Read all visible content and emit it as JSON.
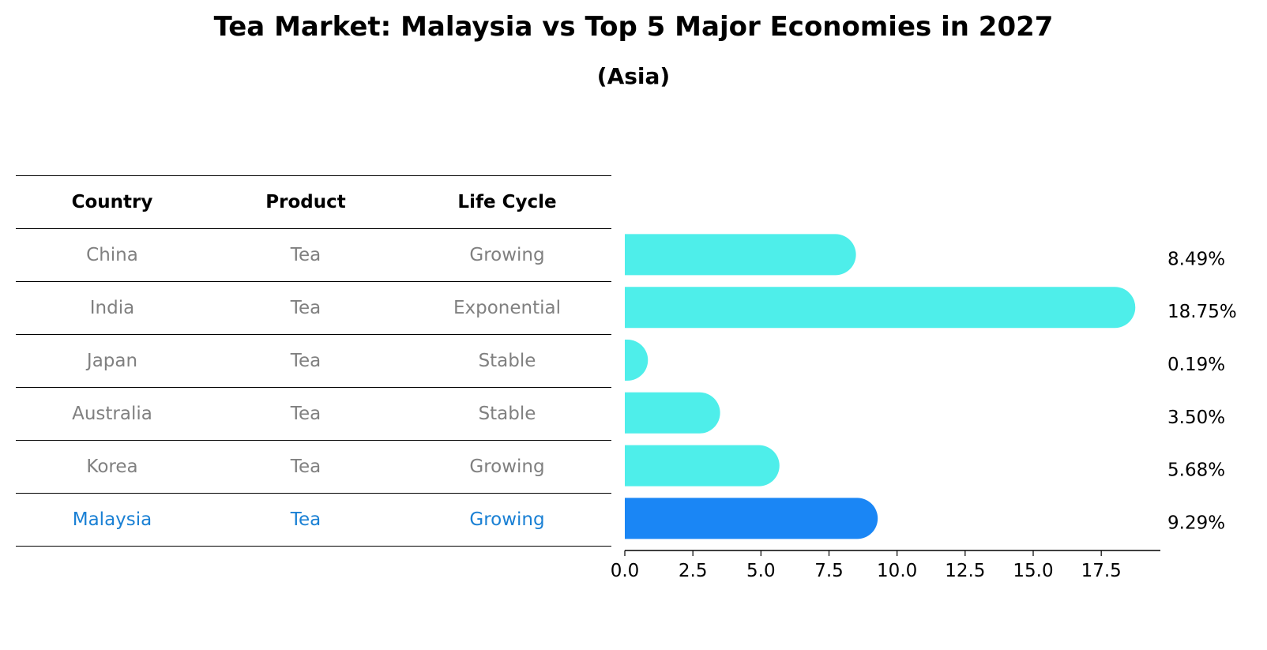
{
  "title": "Tea Market: Malaysia vs Top 5 Major Economies in 2027",
  "subtitle": "(Asia)",
  "table": {
    "headers": [
      "Country",
      "Product",
      "Life Cycle"
    ],
    "rows": [
      {
        "country": "China",
        "product": "Tea",
        "life_cycle": "Growing"
      },
      {
        "country": "India",
        "product": "Tea",
        "life_cycle": "Exponential"
      },
      {
        "country": "Japan",
        "product": "Tea",
        "life_cycle": "Stable"
      },
      {
        "country": "Australia",
        "product": "Tea",
        "life_cycle": "Stable"
      },
      {
        "country": "Korea",
        "product": "Tea",
        "life_cycle": "Growing"
      },
      {
        "country": "Malaysia",
        "product": "Tea",
        "life_cycle": "Growing"
      }
    ]
  },
  "chart_data": {
    "type": "bar",
    "orientation": "horizontal",
    "categories": [
      "China",
      "India",
      "Japan",
      "Australia",
      "Korea",
      "Malaysia"
    ],
    "values": [
      8.49,
      18.75,
      0.19,
      3.5,
      5.68,
      9.29
    ],
    "value_labels": [
      "8.49%",
      "18.75%",
      "0.19%",
      "3.50%",
      "5.68%",
      "9.29%"
    ],
    "xlim": [
      0,
      19.7
    ],
    "xticks": [
      0.0,
      2.5,
      5.0,
      7.5,
      10.0,
      12.5,
      15.0,
      17.5
    ],
    "xtick_labels": [
      "0.0",
      "2.5",
      "5.0",
      "7.5",
      "10.0",
      "12.5",
      "15.0",
      "17.5"
    ],
    "xlabel": "",
    "ylabel": "",
    "grid": false,
    "colors": {
      "default": "#4eeeea",
      "highlight": "#1a86f5"
    },
    "highlight_category": "Malaysia"
  }
}
